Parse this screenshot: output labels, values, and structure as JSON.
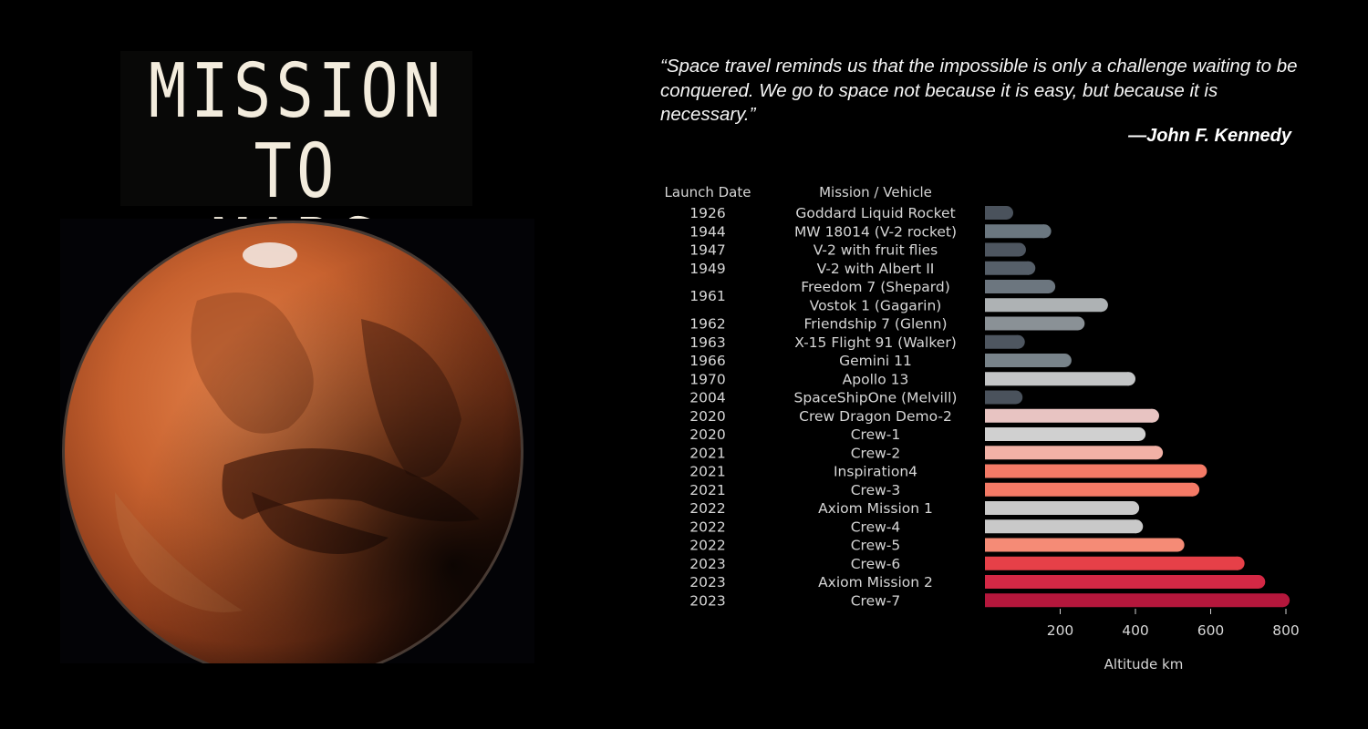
{
  "title": {
    "line1": "MISSION",
    "line2": "TO MARS"
  },
  "quote": {
    "text": "“Space travel reminds us that the impossible is only a challenge waiting to be conquered. We go to space not because it is easy, but because it is necessary.”",
    "author": "—John F. Kennedy"
  },
  "chart_data": {
    "type": "bar",
    "orientation": "horizontal",
    "column_headers": {
      "date": "Launch Date",
      "mission": "Mission / Vehicle"
    },
    "xlabel": "Altitude km",
    "xticks": [
      200,
      400,
      600,
      800
    ],
    "xlim": [
      0,
      840
    ],
    "grid": false,
    "rows": [
      {
        "date": "1926",
        "mission": "Goddard Liquid Rocket",
        "value": 0.012,
        "color": "#4a525c"
      },
      {
        "date": "1944",
        "mission": "MW 18014 (V-2 rocket)",
        "value": 176,
        "color": "#6b7780"
      },
      {
        "date": "1947",
        "mission": "V-2 with fruit flies",
        "value": 109,
        "color": "#4e5660"
      },
      {
        "date": "1949",
        "mission": "V-2 with Albert II",
        "value": 134,
        "color": "#565f69"
      },
      {
        "date": "1961",
        "mission": "Freedom 7 (Shepard)",
        "value": 187,
        "color": "#6c767f"
      },
      {
        "date": "",
        "mission": "Vostok 1 (Gagarin)",
        "value": 327,
        "color": "#aeb2b4"
      },
      {
        "date": "1962",
        "mission": "Friendship 7 (Glenn)",
        "value": 265,
        "color": "#8a9196"
      },
      {
        "date": "1963",
        "mission": "X-15 Flight 91 (Walker)",
        "value": 106,
        "color": "#4e5660"
      },
      {
        "date": "1966",
        "mission": "Gemini 11",
        "value": 230,
        "color": "#78838a"
      },
      {
        "date": "1970",
        "mission": "Apollo 13",
        "value": 400,
        "color": "#c3c5c6"
      },
      {
        "date": "2004",
        "mission": "SpaceShipOne (Melvill)",
        "value": 100,
        "color": "#4a525c"
      },
      {
        "date": "2020",
        "mission": "Crew Dragon Demo-2",
        "value": 463,
        "color": "#e8c4c2"
      },
      {
        "date": "2020",
        "mission": "Crew-1",
        "value": 427,
        "color": "#d0d0d0"
      },
      {
        "date": "2021",
        "mission": "Crew-2",
        "value": 473,
        "color": "#f2b1a6"
      },
      {
        "date": "2021",
        "mission": "Inspiration4",
        "value": 590,
        "color": "#f47a66"
      },
      {
        "date": "2021",
        "mission": "Crew-3",
        "value": 570,
        "color": "#f47a66"
      },
      {
        "date": "2022",
        "mission": "Axiom Mission 1",
        "value": 410,
        "color": "#c9c9c9"
      },
      {
        "date": "2022",
        "mission": "Crew-4",
        "value": 420,
        "color": "#c9c9c9"
      },
      {
        "date": "2022",
        "mission": "Crew-5",
        "value": 530,
        "color": "#f58b76"
      },
      {
        "date": "2023",
        "mission": "Crew-6",
        "value": 690,
        "color": "#e64048"
      },
      {
        "date": "2023",
        "mission": "Axiom Mission 2",
        "value": 745,
        "color": "#d42845"
      },
      {
        "date": "2023",
        "mission": "Crew-7",
        "value": 810,
        "color": "#b5173c"
      }
    ]
  }
}
